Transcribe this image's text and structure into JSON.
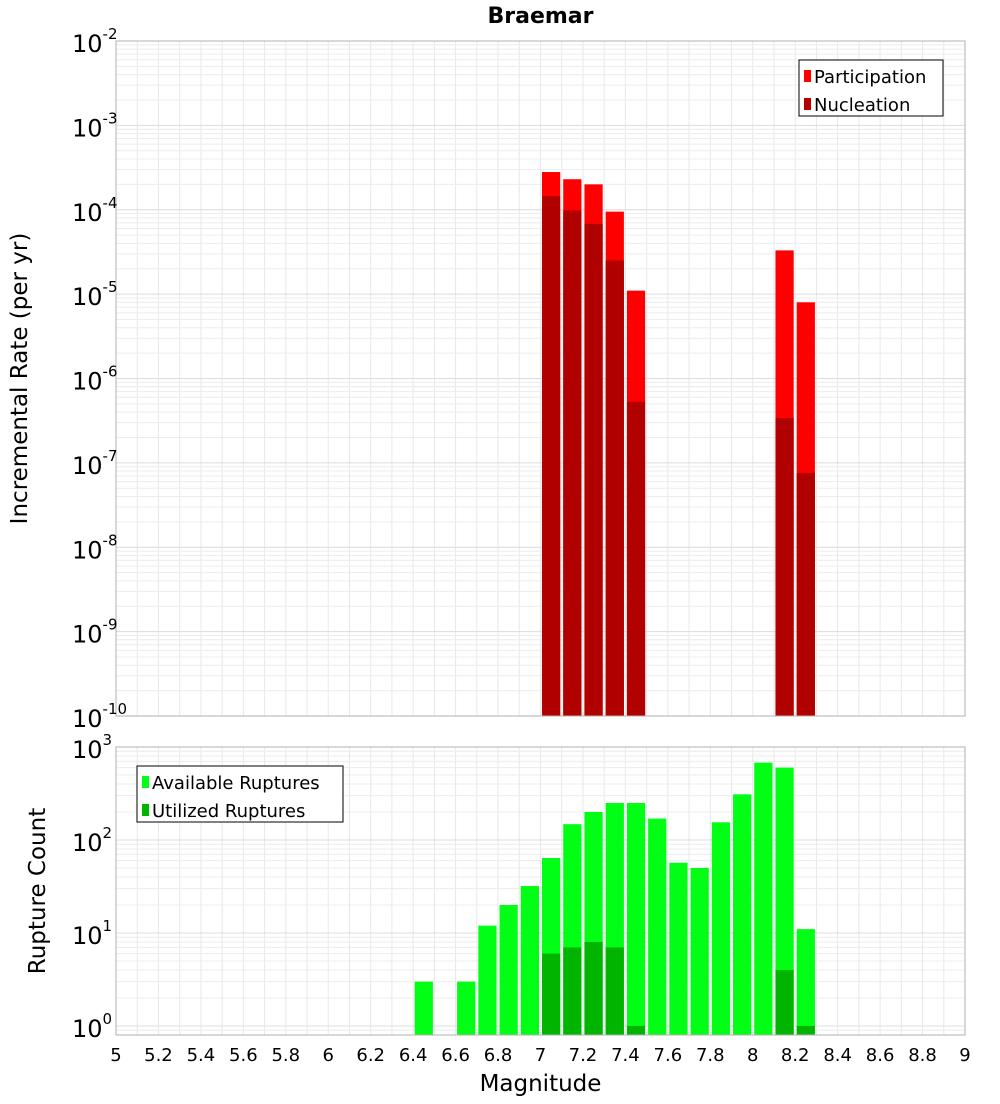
{
  "chart_data": [
    {
      "type": "bar",
      "title": "Braemar",
      "xlabel": "",
      "ylabel": "Incremental Rate (per yr)",
      "yscale": "log",
      "ylim": [
        1e-10,
        0.01
      ],
      "xlim": [
        5,
        9
      ],
      "ytick_labels": [
        {
          "base": "10",
          "exp": "-2"
        },
        {
          "base": "10",
          "exp": "-3"
        },
        {
          "base": "10",
          "exp": "-4"
        },
        {
          "base": "10",
          "exp": "-5"
        },
        {
          "base": "10",
          "exp": "-6"
        },
        {
          "base": "10",
          "exp": "-7"
        },
        {
          "base": "10",
          "exp": "-8"
        },
        {
          "base": "10",
          "exp": "-9"
        },
        {
          "base": "10",
          "exp": "-10"
        }
      ],
      "grid": true,
      "legend_position": "top-right",
      "series": [
        {
          "name": "Participation",
          "color": "#ff0000",
          "x": [
            7.05,
            7.15,
            7.25,
            7.35,
            7.45,
            8.15,
            8.25
          ],
          "values": [
            0.00028,
            0.00023,
            0.0002,
            9.5e-05,
            1.1e-05,
            3.3e-05,
            8e-06
          ]
        },
        {
          "name": "Nucleation",
          "color": "#b00000",
          "x": [
            7.05,
            7.15,
            7.25,
            7.35,
            7.45,
            8.15,
            8.25
          ],
          "values": [
            0.000145,
            9.8e-05,
            6.8e-05,
            2.5e-05,
            5.3e-07,
            3.4e-07,
            7.6e-08
          ]
        }
      ]
    },
    {
      "type": "bar",
      "title": "",
      "xlabel": "Magnitude",
      "ylabel": "Rupture Count",
      "yscale": "log",
      "ylim": [
        0.8,
        1000
      ],
      "xlim": [
        5,
        9
      ],
      "ytick_labels": [
        {
          "base": "10",
          "exp": "3"
        },
        {
          "base": "10",
          "exp": "2"
        },
        {
          "base": "10",
          "exp": "1"
        },
        {
          "base": "10",
          "exp": "0"
        }
      ],
      "xtick_labels": [
        "5",
        "5.2",
        "5.4",
        "5.6",
        "5.8",
        "6",
        "6.2",
        "6.4",
        "6.6",
        "6.8",
        "7",
        "7.2",
        "7.4",
        "7.6",
        "7.8",
        "8",
        "8.2",
        "8.4",
        "8.6",
        "8.8",
        "9"
      ],
      "grid": true,
      "legend_position": "top-left",
      "series": [
        {
          "name": "Available Ruptures",
          "color": "#00ff14",
          "x": [
            6.45,
            6.65,
            6.75,
            6.85,
            6.95,
            7.05,
            7.15,
            7.25,
            7.35,
            7.45,
            7.55,
            7.65,
            7.75,
            7.85,
            7.95,
            8.05,
            8.15,
            8.25
          ],
          "values": [
            3,
            3,
            12,
            20,
            32,
            64,
            148,
            200,
            250,
            250,
            170,
            57,
            50,
            155,
            310,
            680,
            600,
            11
          ]
        },
        {
          "name": "Utilized Ruptures",
          "color": "#00b400",
          "x": [
            7.05,
            7.15,
            7.25,
            7.35,
            7.45,
            8.15,
            8.25
          ],
          "values": [
            6,
            7,
            8,
            7,
            1,
            4,
            1
          ]
        }
      ]
    }
  ]
}
